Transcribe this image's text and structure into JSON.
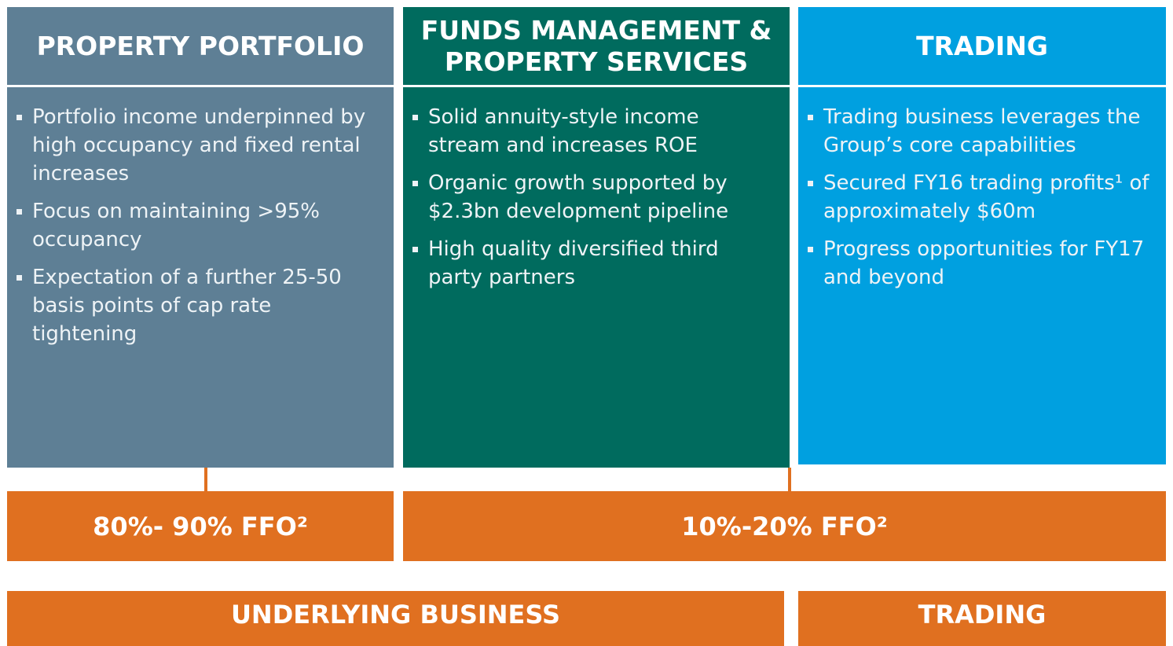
{
  "columns": [
    {
      "title": "PROPERTY PORTFOLIO",
      "bullets": [
        "Portfolio income underpinned by high occupancy and fixed rental increases",
        "Focus on maintaining >95% occupancy",
        "Expectation of a further 25-50 basis points of cap rate tightening"
      ]
    },
    {
      "title": "FUNDS MANAGEMENT & PROPERTY SERVICES",
      "bullets": [
        "Solid annuity-style income stream and increases ROE",
        "Organic growth supported by $2.3bn development pipeline",
        "High quality diversified third party partners"
      ]
    },
    {
      "title": "TRADING",
      "bullets": [
        "Trading business leverages the Group’s core capabilities",
        "Secured FY16 trading profits¹ of approximately $60m",
        "Progress opportunities for FY17 and beyond"
      ]
    }
  ],
  "ffo": [
    "80%- 90% FFO²",
    "10%-20% FFO²"
  ],
  "footer": [
    "UNDERLYING BUSINESS",
    "TRADING"
  ]
}
